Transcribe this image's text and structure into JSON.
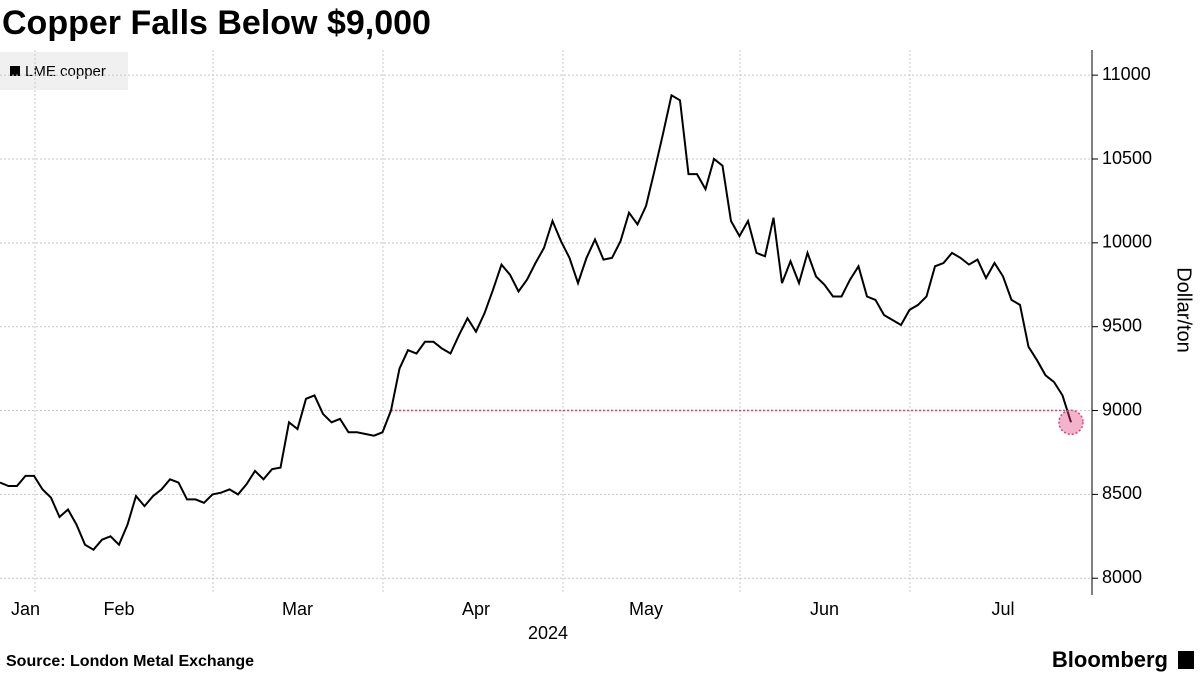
{
  "chart_data": {
    "type": "line",
    "title": "Copper Falls Below $9,000",
    "y_axis_label": "Dollar/ton",
    "year_label": "2024",
    "source": "Source:  London Metal Exchange",
    "brand": "Bloomberg",
    "categories": [
      null,
      null,
      null,
      "Jan",
      null,
      null,
      null,
      null,
      null,
      null,
      null,
      null,
      null,
      null,
      "Feb",
      null,
      null,
      null,
      null,
      null,
      null,
      null,
      null,
      null,
      null,
      null,
      null,
      null,
      null,
      null,
      null,
      null,
      null,
      null,
      null,
      "Mar",
      null,
      null,
      null,
      null,
      null,
      null,
      null,
      null,
      null,
      null,
      null,
      null,
      null,
      null,
      null,
      null,
      null,
      null,
      null,
      null,
      "Apr",
      null,
      null,
      null,
      null,
      null,
      null,
      null,
      null,
      null,
      null,
      null,
      null,
      null,
      null,
      null,
      null,
      null,
      null,
      null,
      "May",
      null,
      null,
      null,
      null,
      null,
      null,
      null,
      null,
      null,
      null,
      null,
      null,
      null,
      null,
      null,
      null,
      null,
      null,
      null,
      null,
      "Jun",
      null,
      null,
      null,
      null,
      null,
      null,
      null,
      null,
      null,
      null,
      null,
      null,
      null,
      null,
      null,
      null,
      null,
      null,
      null,
      null,
      "Jul",
      null,
      null,
      null,
      null,
      null,
      null,
      null,
      null
    ],
    "series": [
      {
        "name": "LME copper",
        "color": "#000000",
        "values": [
          8570,
          8550,
          8550,
          8610,
          8610,
          8530,
          8480,
          8365,
          8410,
          8320,
          8200,
          8170,
          8230,
          8250,
          8200,
          8320,
          8490,
          8430,
          8490,
          8530,
          8590,
          8570,
          8470,
          8470,
          8450,
          8500,
          8510,
          8530,
          8500,
          8560,
          8640,
          8590,
          8650,
          8660,
          8930,
          8890,
          9070,
          9090,
          8980,
          8930,
          8950,
          8870,
          8870,
          8860,
          8850,
          8870,
          9000,
          9250,
          9360,
          9340,
          9410,
          9410,
          9370,
          9340,
          9450,
          9550,
          9470,
          9580,
          9720,
          9870,
          9810,
          9710,
          9780,
          9880,
          9970,
          10130,
          10010,
          9910,
          9760,
          9910,
          10020,
          9900,
          9910,
          10010,
          10180,
          10110,
          10220,
          10430,
          10650,
          10880,
          10850,
          10410,
          10410,
          10320,
          10500,
          10460,
          10130,
          10040,
          10130,
          9940,
          9920,
          10150,
          9760,
          9890,
          9760,
          9940,
          9800,
          9750,
          9680,
          9680,
          9780,
          9860,
          9680,
          9660,
          9570,
          9540,
          9510,
          9600,
          9630,
          9680,
          9860,
          9880,
          9940,
          9910,
          9870,
          9900,
          9790,
          9880,
          9800,
          9660,
          9630,
          9380,
          9300,
          9210,
          9170,
          9090,
          8930
        ]
      }
    ],
    "reference_line": 9000,
    "reference_color": "#e0407a",
    "ylim": [
      7900,
      11150
    ],
    "yticks": [
      8000,
      8500,
      9000,
      9500,
      10000,
      10500,
      11000
    ],
    "grid": true
  }
}
